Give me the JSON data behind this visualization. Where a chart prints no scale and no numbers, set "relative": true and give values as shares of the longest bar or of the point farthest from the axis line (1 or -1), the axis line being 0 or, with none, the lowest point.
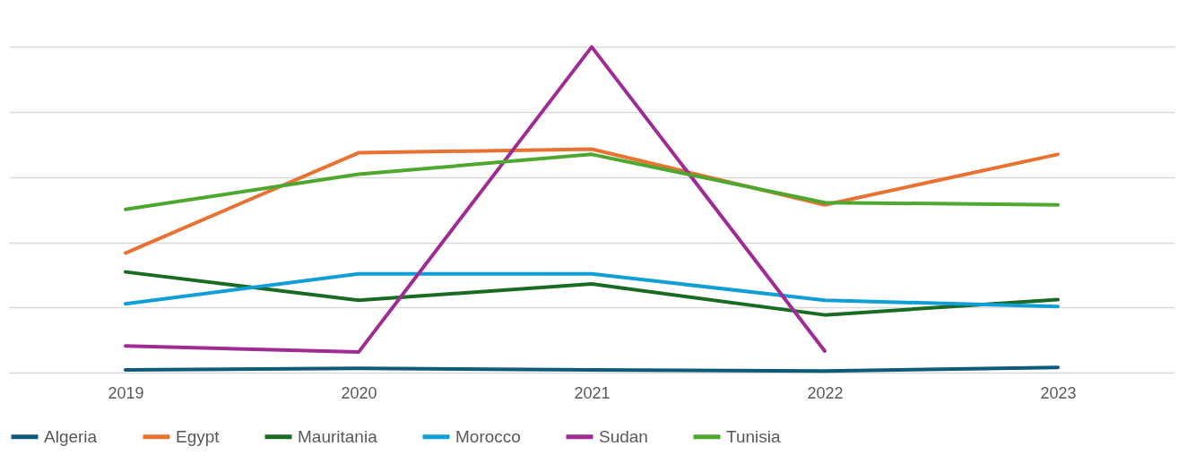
{
  "chart_data": {
    "type": "line",
    "relative": true,
    "categories": [
      "2019",
      "2020",
      "2021",
      "2022",
      "2023"
    ],
    "grid": "y",
    "legend": "bottom",
    "line_style": "solid",
    "series": [
      {
        "name": "Algeria",
        "color": "#0e5a7a",
        "values": [
          0.008,
          0.013,
          0.008,
          0.005,
          0.016
        ]
      },
      {
        "name": "Egypt",
        "color": "#e97132",
        "values": [
          0.367,
          0.675,
          0.686,
          0.515,
          0.67
        ]
      },
      {
        "name": "Mauritania",
        "color": "#196b24",
        "values": [
          0.309,
          0.222,
          0.272,
          0.177,
          0.224
        ]
      },
      {
        "name": "Morocco",
        "color": "#0f9ed5",
        "values": [
          0.211,
          0.303,
          0.303,
          0.222,
          0.203
        ]
      },
      {
        "name": "Sudan",
        "color": "#a02b93",
        "values": [
          0.082,
          0.063,
          1,
          0.066,
          null
        ]
      },
      {
        "name": "Tunisia",
        "color": "#4ea72e",
        "values": [
          0.501,
          0.609,
          0.67,
          0.522,
          0.515
        ]
      }
    ]
  }
}
